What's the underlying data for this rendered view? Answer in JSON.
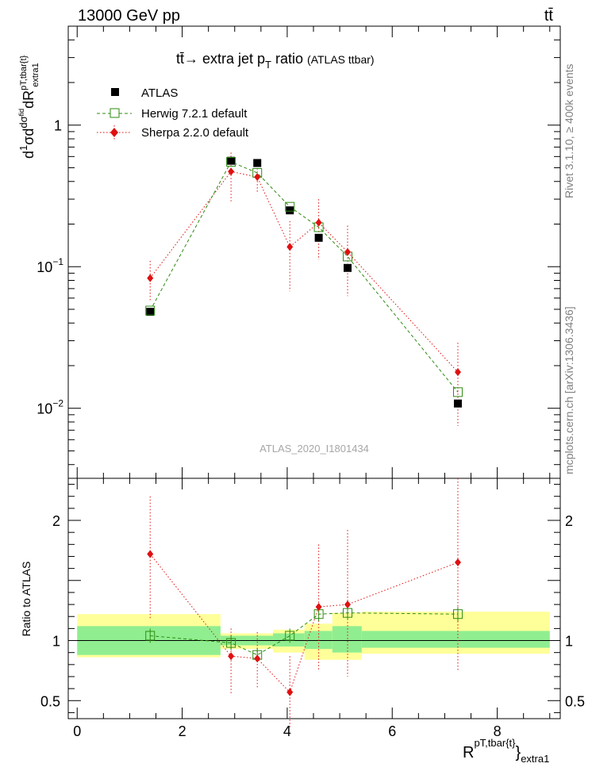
{
  "header": {
    "left_label": "13000 GeV pp",
    "right_label": "tt̄"
  },
  "side_labels": {
    "rivet": "Rivet 3.1.10, ≥ 400k events",
    "mcplots": "mcplots.cern.ch [arXiv:1306.3436]"
  },
  "chart_data": {
    "type": "scatter",
    "title": "tt̄→ extra jet p_T ratio (ATLAS ttbar)",
    "watermark": "ATLAS_2020_I1801434",
    "xlim": [
      -0.17,
      9.2
    ],
    "xticks": [
      0,
      2,
      4,
      6,
      8
    ],
    "xlabel": "R^{pT,tbar{t}}_{extra1}",
    "main_panel": {
      "ylabel": "d(1/σ)dσ^{fid}/dR^{pT,tbar{t}}_{extra1}",
      "yscale": "log",
      "ylim": [
        0.0032,
        5.0
      ],
      "yticks": [
        {
          "v": 0.01,
          "label": "10",
          "exp": "−2"
        },
        {
          "v": 0.1,
          "label": "10",
          "exp": "−1"
        },
        {
          "v": 1,
          "label": "1",
          "exp": ""
        }
      ],
      "legend_position": "top-left",
      "series": [
        {
          "name": "ATLAS",
          "color": "#000000",
          "marker": "filled-square",
          "x": [
            1.39,
            2.93,
            3.43,
            4.05,
            4.6,
            5.15,
            7.25
          ],
          "y": [
            0.048,
            0.56,
            0.54,
            0.25,
            0.16,
            0.098,
            0.0108
          ]
        },
        {
          "name": "Herwig 7.2.1 default",
          "color": "#2e8b11",
          "marker": "open-square",
          "line": "dashed",
          "x": [
            1.39,
            2.93,
            3.43,
            4.05,
            4.6,
            5.15,
            7.25
          ],
          "y": [
            0.049,
            0.55,
            0.46,
            0.265,
            0.19,
            0.118,
            0.013
          ]
        },
        {
          "name": "Sherpa 2.2.0 default",
          "color": "#e01010",
          "marker": "filled-diamond",
          "line": "dotted",
          "x": [
            1.39,
            2.93,
            3.43,
            4.05,
            4.6,
            5.15,
            7.25
          ],
          "y": [
            0.083,
            0.47,
            0.43,
            0.138,
            0.205,
            0.127,
            0.018
          ],
          "err_lo": [
            0.057,
            0.29,
            0.33,
            0.067,
            0.112,
            0.062,
            0.0075
          ],
          "err_hi": [
            0.11,
            0.64,
            0.55,
            0.21,
            0.3,
            0.195,
            0.029
          ]
        }
      ]
    },
    "ratio_panel": {
      "ylabel": "Ratio to ATLAS",
      "ylim": [
        0.35,
        2.35
      ],
      "yticks": [
        0.5,
        1,
        1.5,
        2
      ],
      "ytick_labels": [
        "0.5",
        "1",
        "",
        "2"
      ],
      "band_bins": [
        0,
        2.73,
        3.73,
        4.33,
        4.86,
        5.42,
        9.0
      ],
      "band_green": [
        [
          0.88,
          1.12
        ],
        [
          0.96,
          1.04
        ],
        [
          0.95,
          1.06
        ],
        [
          0.93,
          1.08
        ],
        [
          0.9,
          1.12
        ],
        [
          0.94,
          1.08
        ]
      ],
      "band_yellow": [
        [
          0.86,
          1.22
        ],
        [
          0.93,
          1.06
        ],
        [
          0.9,
          1.09
        ],
        [
          0.84,
          1.14
        ],
        [
          0.84,
          1.23
        ],
        [
          0.89,
          1.24
        ]
      ],
      "series": [
        {
          "name": "Herwig 7.2.1 default",
          "color": "#2e8b11",
          "x": [
            1.39,
            2.93,
            3.43,
            4.05,
            4.6,
            5.15,
            7.25
          ],
          "y": [
            1.04,
            0.98,
            0.88,
            1.04,
            1.22,
            1.23,
            1.22
          ]
        },
        {
          "name": "Sherpa 2.2.0 default",
          "color": "#e01010",
          "x": [
            1.39,
            2.93,
            3.43,
            4.05,
            4.6,
            5.15,
            7.25
          ],
          "y": [
            1.72,
            0.87,
            0.85,
            0.57,
            1.28,
            1.3,
            1.65
          ],
          "err_lo": [
            1.18,
            0.55,
            0.61,
            0.27,
            0.75,
            0.7,
            0.74
          ],
          "err_hi": [
            2.2,
            1.1,
            1.07,
            0.87,
            1.8,
            1.92,
            2.35
          ]
        }
      ]
    }
  },
  "colors": {
    "band_green": "#90ee90",
    "band_yellow": "#ffff99",
    "side_text": "#808080",
    "watermark": "#a6a6a6"
  }
}
